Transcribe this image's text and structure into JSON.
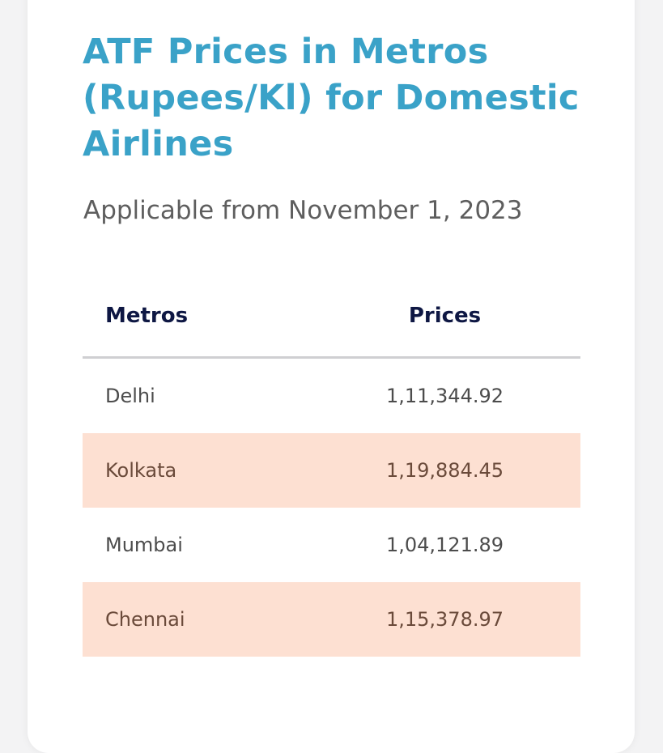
{
  "header": {
    "title": "ATF Prices in Metros (Rupees/Kl) for Domestic Airlines",
    "subtitle": "Applicable from November 1, 2023"
  },
  "table": {
    "columns": [
      "Metros",
      "Prices"
    ],
    "rows": [
      {
        "metro": "Delhi",
        "price": "1,11,344.92"
      },
      {
        "metro": "Kolkata",
        "price": "1,19,884.45"
      },
      {
        "metro": "Mumbai",
        "price": "1,04,121.89"
      },
      {
        "metro": "Chennai",
        "price": "1,15,378.97"
      }
    ]
  },
  "colors": {
    "title": "#3aa2c8",
    "header_text": "#0e1743",
    "alt_row": "#fde0d2"
  }
}
